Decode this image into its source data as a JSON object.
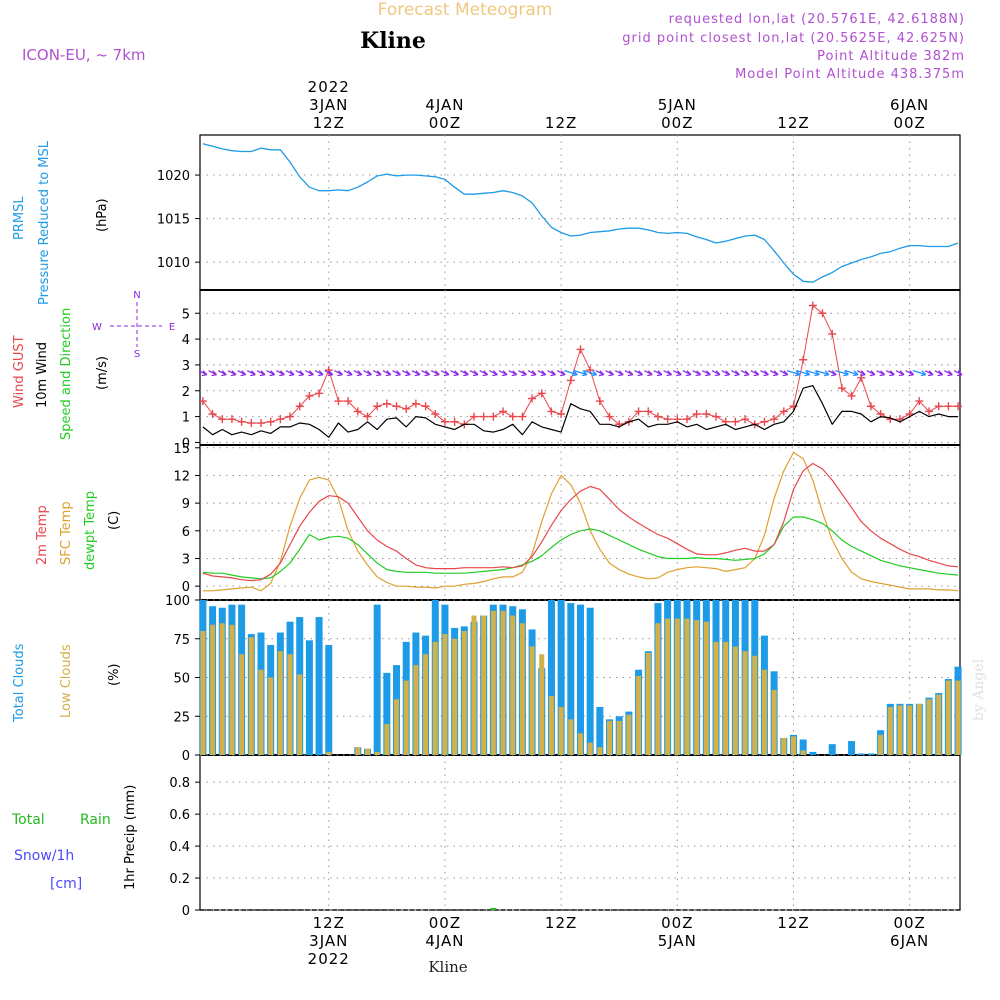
{
  "header": {
    "title": "Forecast Meteogram",
    "location": "Kline",
    "model": "ICON-EU, ~ 7km",
    "requested": "requested lon,lat (20.5761E, 42.6188N)",
    "gridpoint": "grid point closest lon,lat (20.5625E, 42.625N)",
    "point_altitude": "Point Altitude 382m",
    "model_altitude": "Model Point Altitude 438.375m",
    "credit": "by Angel",
    "footer_location": "Kline"
  },
  "colors": {
    "pressure": "#1e9be6",
    "gust": "#e8474c",
    "wind": "#000000",
    "direction": "#8a2be2",
    "dir_strong": "#1e90ff",
    "temp2m": "#e8474c",
    "sfc": "#e0a030",
    "dewpt": "#22cc22",
    "total_clouds": "#1e9be6",
    "low_clouds": "#d2b04a",
    "rain": "#22bb22",
    "snow": "#4b4bff",
    "title_color": "#f0c880",
    "info_color": "#b050d0"
  },
  "time_axis": {
    "top_labels": [
      {
        "t": 12,
        "lines": [
          "2022",
          "3JAN",
          "12Z"
        ]
      },
      {
        "t": 24,
        "lines": [
          "4JAN",
          "00Z"
        ]
      },
      {
        "t": 36,
        "lines": [
          "12Z"
        ]
      },
      {
        "t": 48,
        "lines": [
          "5JAN",
          "00Z"
        ]
      },
      {
        "t": 60,
        "lines": [
          "12Z"
        ]
      },
      {
        "t": 72,
        "lines": [
          "6JAN",
          "00Z"
        ]
      }
    ],
    "bottom_labels": [
      {
        "t": 12,
        "lines": [
          "12Z",
          "3JAN",
          "2022"
        ]
      },
      {
        "t": 24,
        "lines": [
          "00Z",
          "4JAN"
        ]
      },
      {
        "t": 36,
        "lines": [
          "12Z"
        ]
      },
      {
        "t": 48,
        "lines": [
          "00Z",
          "5JAN"
        ]
      },
      {
        "t": 60,
        "lines": [
          "12Z"
        ]
      },
      {
        "t": 72,
        "lines": [
          "00Z",
          "6JAN"
        ]
      }
    ]
  },
  "panel_labels": {
    "pressure": {
      "l1": "PRMSL",
      "l2": "Pressure Reduced to MSL",
      "unit": "(hPa)"
    },
    "wind": {
      "l1": "Wind GUST",
      "l2": "10m Wind",
      "l3": "Speed and Direction",
      "unit": "(m/s)",
      "compass": {
        "n": "N",
        "s": "S",
        "w": "W",
        "e": "E"
      }
    },
    "temp": {
      "l1": "2m Temp",
      "l2": "SFC Temp",
      "l3": "dewpt Temp",
      "unit": "(C)"
    },
    "clouds": {
      "l1": "Total Clouds",
      "l2": "Low Clouds",
      "unit": "(%)"
    },
    "precip": {
      "l1": "Total",
      "l1b": "Rain",
      "l2": "Snow/1h",
      "l3": "[cm]",
      "unit": "1hr Precip (mm)"
    }
  },
  "chart_data": [
    {
      "id": "pressure",
      "type": "line",
      "ylim": [
        1006.8,
        1024.6
      ],
      "yticks": [
        1010,
        1015,
        1020
      ],
      "x": [
        -1,
        0,
        1,
        2,
        3,
        4,
        5,
        6,
        7,
        8,
        9,
        10,
        11,
        12,
        13,
        14,
        15,
        16,
        17,
        18,
        19,
        20,
        21,
        22,
        23,
        24,
        25,
        26,
        27,
        28,
        29,
        30,
        31,
        32,
        33,
        34,
        35,
        36,
        37,
        38,
        39,
        40,
        41,
        42,
        43,
        44,
        45,
        46,
        47,
        48,
        49,
        50,
        51,
        52,
        53,
        54,
        55,
        56,
        57,
        58,
        59,
        60,
        61,
        62,
        63,
        64,
        65,
        66,
        67,
        68,
        69,
        70,
        71,
        72,
        73,
        74,
        75,
        76,
        77
      ],
      "series": [
        {
          "name": "PRMSL",
          "values": [
            1023.6,
            1023.3,
            1023.0,
            1022.8,
            1022.7,
            1022.7,
            1023.1,
            1022.9,
            1022.9,
            1021.5,
            1019.8,
            1018.6,
            1018.2,
            1018.2,
            1018.3,
            1018.2,
            1018.6,
            1019.2,
            1019.9,
            1020.1,
            1019.9,
            1020.0,
            1020.0,
            1019.9,
            1019.8,
            1019.5,
            1018.6,
            1017.8,
            1017.8,
            1017.9,
            1018.0,
            1018.2,
            1018.0,
            1017.6,
            1016.8,
            1015.3,
            1014.0,
            1013.4,
            1013.0,
            1013.1,
            1013.4,
            1013.5,
            1013.6,
            1013.8,
            1013.9,
            1013.9,
            1013.7,
            1013.4,
            1013.3,
            1013.4,
            1013.3,
            1012.9,
            1012.6,
            1012.2,
            1012.4,
            1012.7,
            1013.0,
            1013.1,
            1012.6,
            1011.3,
            1009.9,
            1008.6,
            1007.8,
            1007.7,
            1008.3,
            1008.8,
            1009.5,
            1009.9,
            1010.3,
            1010.6,
            1011.0,
            1011.2,
            1011.6,
            1011.9,
            1011.9,
            1011.8,
            1011.8,
            1011.8,
            1012.2
          ]
        }
      ]
    },
    {
      "id": "wind",
      "type": "line",
      "ylim": [
        -0.1,
        5.9
      ],
      "yticks": [
        0,
        1,
        2,
        3,
        4,
        5
      ],
      "direction_marker_level": 2.7,
      "x": [
        -1,
        0,
        1,
        2,
        3,
        4,
        5,
        6,
        7,
        8,
        9,
        10,
        11,
        12,
        13,
        14,
        15,
        16,
        17,
        18,
        19,
        20,
        21,
        22,
        23,
        24,
        25,
        26,
        27,
        28,
        29,
        30,
        31,
        32,
        33,
        34,
        35,
        36,
        37,
        38,
        39,
        40,
        41,
        42,
        43,
        44,
        45,
        46,
        47,
        48,
        49,
        50,
        51,
        52,
        53,
        54,
        55,
        56,
        57,
        58,
        59,
        60,
        61,
        62,
        63,
        64,
        65,
        66,
        67,
        68,
        69,
        70,
        71,
        72,
        73,
        74,
        75,
        76,
        77
      ],
      "series": [
        {
          "name": "Wind GUST",
          "values": [
            1.6,
            1.1,
            0.9,
            0.9,
            0.8,
            0.75,
            0.75,
            0.8,
            0.9,
            1.0,
            1.4,
            1.8,
            1.9,
            2.8,
            1.6,
            1.6,
            1.2,
            1.0,
            1.4,
            1.5,
            1.4,
            1.3,
            1.5,
            1.4,
            1.1,
            0.8,
            0.8,
            0.7,
            1.0,
            1.0,
            1.0,
            1.2,
            1.0,
            1.0,
            1.7,
            1.9,
            1.2,
            1.1,
            2.4,
            3.6,
            2.8,
            1.6,
            1.0,
            0.7,
            0.8,
            1.2,
            1.2,
            1.0,
            0.9,
            0.9,
            0.9,
            1.1,
            1.1,
            1.0,
            0.8,
            0.8,
            0.9,
            0.7,
            0.8,
            0.9,
            1.2,
            1.4,
            3.2,
            5.3,
            5.0,
            4.2,
            2.1,
            1.8,
            2.5,
            1.4,
            1.1,
            0.9,
            0.9,
            1.1,
            1.6,
            1.2,
            1.4,
            1.4,
            1.4
          ]
        },
        {
          "name": "10m Wind",
          "values": [
            0.6,
            0.3,
            0.5,
            0.3,
            0.4,
            0.3,
            0.45,
            0.35,
            0.6,
            0.6,
            0.75,
            0.7,
            0.5,
            0.2,
            0.75,
            0.4,
            0.5,
            0.8,
            0.5,
            0.9,
            0.95,
            0.6,
            1.0,
            0.95,
            0.7,
            0.6,
            0.5,
            0.7,
            0.7,
            0.45,
            0.4,
            0.5,
            0.7,
            0.3,
            0.8,
            0.6,
            0.5,
            0.4,
            1.5,
            1.3,
            1.2,
            0.7,
            0.7,
            0.6,
            0.8,
            0.9,
            0.6,
            0.7,
            0.7,
            0.8,
            0.6,
            0.7,
            0.5,
            0.6,
            0.7,
            0.5,
            0.6,
            0.7,
            0.5,
            0.7,
            0.8,
            1.2,
            2.1,
            2.2,
            1.5,
            0.7,
            1.2,
            1.2,
            1.1,
            0.8,
            1.0,
            0.95,
            0.8,
            1.0,
            1.2,
            1.0,
            1.1,
            1.0,
            1.0
          ]
        }
      ]
    },
    {
      "id": "temperature",
      "type": "line",
      "ylim": [
        -1.5,
        15.3
      ],
      "yticks": [
        0,
        3,
        6,
        9,
        12,
        15
      ],
      "x": [
        -1,
        0,
        1,
        2,
        3,
        4,
        5,
        6,
        7,
        8,
        9,
        10,
        11,
        12,
        13,
        14,
        15,
        16,
        17,
        18,
        19,
        20,
        21,
        22,
        23,
        24,
        25,
        26,
        27,
        28,
        29,
        30,
        31,
        32,
        33,
        34,
        35,
        36,
        37,
        38,
        39,
        40,
        41,
        42,
        43,
        44,
        45,
        46,
        47,
        48,
        49,
        50,
        51,
        52,
        53,
        54,
        55,
        56,
        57,
        58,
        59,
        60,
        61,
        62,
        63,
        64,
        65,
        66,
        67,
        68,
        69,
        70,
        71,
        72,
        73,
        74,
        75,
        76,
        77
      ],
      "series": [
        {
          "name": "2m Temp",
          "values": [
            1.4,
            1.1,
            1.0,
            0.9,
            0.7,
            0.6,
            0.7,
            1.3,
            2.5,
            4.5,
            6.5,
            8.0,
            9.2,
            9.8,
            9.7,
            9.0,
            7.5,
            6.0,
            5.0,
            4.3,
            3.8,
            3.0,
            2.3,
            2.0,
            1.9,
            1.9,
            1.9,
            2.0,
            2.0,
            2.0,
            2.0,
            2.1,
            2.0,
            2.2,
            3.2,
            4.8,
            6.6,
            8.2,
            9.4,
            10.3,
            10.8,
            10.5,
            9.4,
            8.3,
            7.5,
            6.8,
            6.2,
            5.6,
            5.2,
            4.6,
            4.0,
            3.5,
            3.4,
            3.4,
            3.6,
            3.9,
            4.1,
            3.8,
            3.8,
            4.5,
            7.0,
            10.5,
            12.5,
            13.3,
            12.7,
            11.5,
            10.0,
            8.5,
            7.0,
            6.0,
            5.2,
            4.6,
            4.0,
            3.5,
            3.2,
            2.8,
            2.5,
            2.2,
            2.1
          ]
        },
        {
          "name": "SFC Temp",
          "values": [
            -0.5,
            -0.5,
            -0.4,
            -0.3,
            -0.2,
            -0.1,
            -0.5,
            0.3,
            2.7,
            6.5,
            9.5,
            11.5,
            11.8,
            11.5,
            9.5,
            6.0,
            3.8,
            2.3,
            1.0,
            0.4,
            0.0,
            0.0,
            -0.1,
            -0.1,
            -0.2,
            0.0,
            0.0,
            0.2,
            0.3,
            0.5,
            0.8,
            1.0,
            1.0,
            1.5,
            3.5,
            7.0,
            10.0,
            12.0,
            11.0,
            9.0,
            6.0,
            4.0,
            2.5,
            1.8,
            1.3,
            1.0,
            0.8,
            0.9,
            1.5,
            1.8,
            2.0,
            2.1,
            2.0,
            1.9,
            1.6,
            1.8,
            2.0,
            3.0,
            5.5,
            9.5,
            12.5,
            14.5,
            13.8,
            11.5,
            8.0,
            5.0,
            3.0,
            1.5,
            0.8,
            0.5,
            0.3,
            0.1,
            -0.1,
            -0.3,
            -0.3,
            -0.3,
            -0.4,
            -0.4,
            -0.5
          ]
        },
        {
          "name": "dewpt Temp",
          "values": [
            1.5,
            1.4,
            1.4,
            1.2,
            1.0,
            0.9,
            0.8,
            0.9,
            1.6,
            2.5,
            4.0,
            5.6,
            5.0,
            5.3,
            5.4,
            5.2,
            4.5,
            3.5,
            2.5,
            1.8,
            1.6,
            1.5,
            1.5,
            1.5,
            1.4,
            1.4,
            1.4,
            1.4,
            1.5,
            1.6,
            1.7,
            1.8,
            2.0,
            2.3,
            2.7,
            3.3,
            4.2,
            5.0,
            5.6,
            6.0,
            6.2,
            6.0,
            5.5,
            5.0,
            4.5,
            4.0,
            3.6,
            3.2,
            3.0,
            3.0,
            3.0,
            3.1,
            3.0,
            3.0,
            2.9,
            2.8,
            2.9,
            3.0,
            3.5,
            4.5,
            6.5,
            7.5,
            7.5,
            7.2,
            6.8,
            6.0,
            5.0,
            4.3,
            3.8,
            3.3,
            2.8,
            2.5,
            2.2,
            2.0,
            1.8,
            1.6,
            1.4,
            1.3,
            1.2
          ]
        }
      ]
    },
    {
      "id": "clouds",
      "type": "bar",
      "ylim": [
        0,
        100
      ],
      "yticks": [
        0,
        25,
        50,
        75,
        100
      ],
      "x": [
        -1,
        0,
        1,
        2,
        3,
        4,
        5,
        6,
        7,
        8,
        9,
        10,
        11,
        12,
        13,
        14,
        15,
        16,
        17,
        18,
        19,
        20,
        21,
        22,
        23,
        24,
        25,
        26,
        27,
        28,
        29,
        30,
        31,
        32,
        33,
        34,
        35,
        36,
        37,
        38,
        39,
        40,
        41,
        42,
        43,
        44,
        45,
        46,
        47,
        48,
        49,
        50,
        51,
        52,
        53,
        54,
        55,
        56,
        57,
        58,
        59,
        60,
        61,
        62,
        63,
        64,
        65,
        66,
        67,
        68,
        69,
        70,
        71,
        72,
        73,
        74,
        75,
        76,
        77
      ],
      "series": [
        {
          "name": "Total Clouds",
          "values": [
            100,
            96,
            95,
            97,
            97,
            78,
            79,
            71,
            79,
            86,
            89,
            74,
            89,
            71,
            0,
            0,
            5,
            4,
            97,
            53,
            58,
            73,
            79,
            77,
            100,
            97,
            82,
            83,
            86,
            90,
            97,
            97,
            96,
            94,
            81,
            56,
            100,
            100,
            98,
            97,
            95,
            31,
            23,
            25,
            28,
            55,
            67,
            98,
            100,
            100,
            100,
            100,
            100,
            100,
            100,
            100,
            100,
            100,
            77,
            54,
            11,
            13,
            10,
            2,
            0,
            7,
            0,
            9,
            1,
            1,
            16,
            33,
            33,
            33,
            33,
            37,
            40,
            49,
            57
          ]
        },
        {
          "name": "Low Clouds",
          "values": [
            80,
            84,
            85,
            84,
            65,
            76,
            55,
            50,
            67,
            65,
            52,
            0,
            0,
            2,
            0,
            0,
            5,
            4,
            2,
            20,
            36,
            48,
            58,
            65,
            73,
            78,
            75,
            80,
            90,
            90,
            93,
            93,
            90,
            85,
            70,
            65,
            38,
            31,
            23,
            14,
            8,
            5,
            22,
            22,
            26,
            51,
            66,
            85,
            88,
            88,
            88,
            87,
            86,
            73,
            73,
            70,
            67,
            64,
            55,
            42,
            11,
            12,
            3,
            0,
            0,
            0,
            0,
            0,
            0,
            0,
            13,
            31,
            32,
            32,
            33,
            36,
            39,
            48,
            48
          ]
        }
      ]
    },
    {
      "id": "precip",
      "type": "bar",
      "ylim": [
        0,
        0.97
      ],
      "yticks": [
        0,
        0.2,
        0.4,
        0.6,
        0.8
      ],
      "ytick_labels": [
        "0",
        "0.2",
        "0.4",
        "0.6",
        "0.8"
      ],
      "x": [
        29
      ],
      "series": [
        {
          "name": "Total Rain",
          "values": [
            0.002
          ]
        },
        {
          "name": "Snow/1h",
          "values": [
            0
          ]
        }
      ]
    }
  ]
}
